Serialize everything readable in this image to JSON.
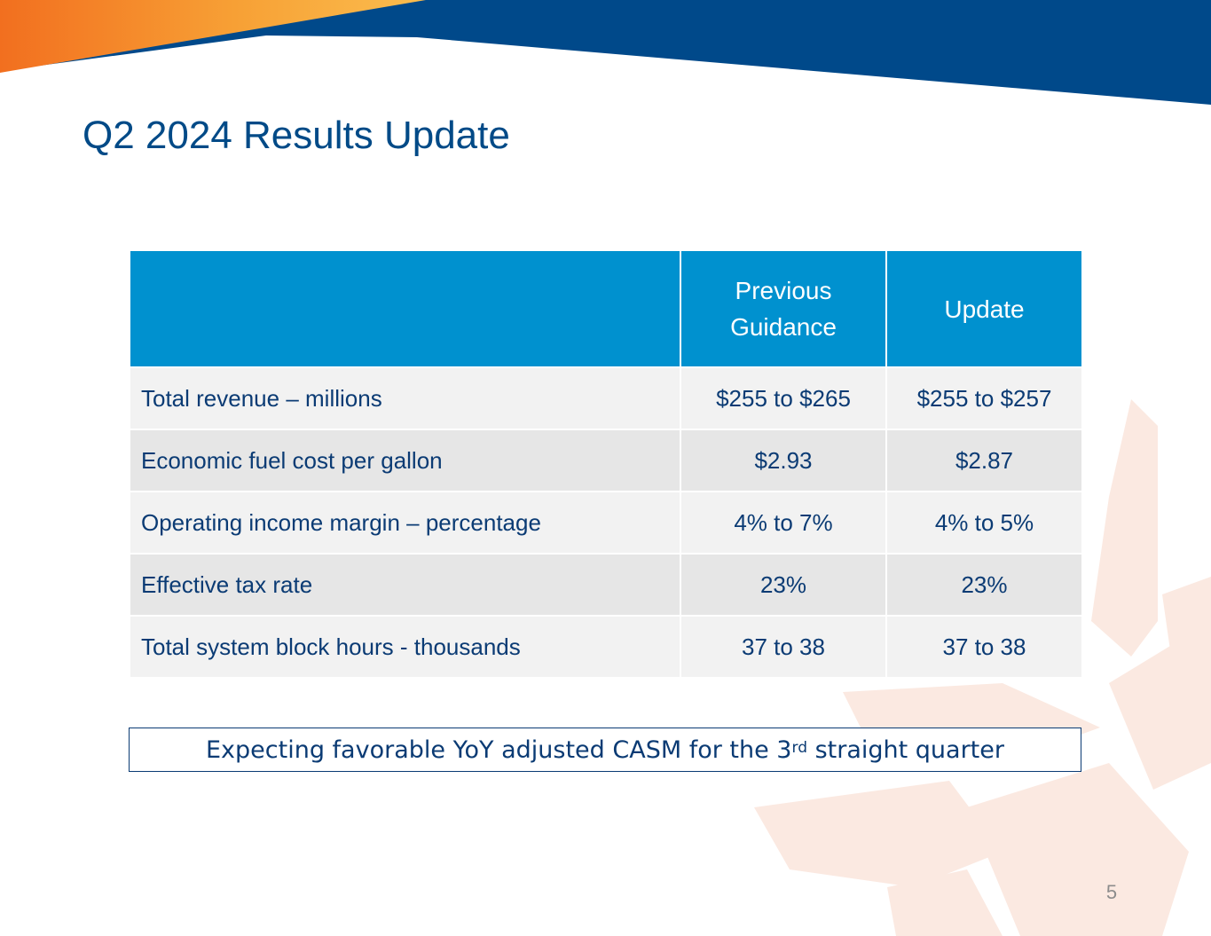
{
  "slide": {
    "title": "Q2 2024 Results Update",
    "page_number": "5"
  },
  "colors": {
    "title": "#004a87",
    "header_fill": "#0091cf",
    "body_text": "#0b3b74",
    "banner_blue": "#00498a",
    "banner_orange": "#f57e20"
  },
  "table": {
    "headers": [
      "",
      "Previous\nGuidance",
      "Update"
    ],
    "header_previous_line1": "Previous",
    "header_previous_line2": "Guidance",
    "header_update": "Update",
    "rows": [
      {
        "label": "Total revenue – millions",
        "previous": "$255 to $265",
        "update": "$255 to $257"
      },
      {
        "label": "Economic fuel cost per gallon",
        "previous": "$2.93",
        "update": "$2.87"
      },
      {
        "label": "Operating income margin – percentage",
        "previous": "4% to 7%",
        "update": "4% to 5%"
      },
      {
        "label": "Effective tax rate",
        "previous": "23%",
        "update": "23%"
      },
      {
        "label": "Total system block hours - thousands",
        "previous": "37 to 38",
        "update": "37 to 38"
      }
    ]
  },
  "callout": {
    "text_before": "Expecting favorable YoY adjusted CASM for the 3",
    "superscript": "rd",
    "text_after": " straight quarter"
  }
}
